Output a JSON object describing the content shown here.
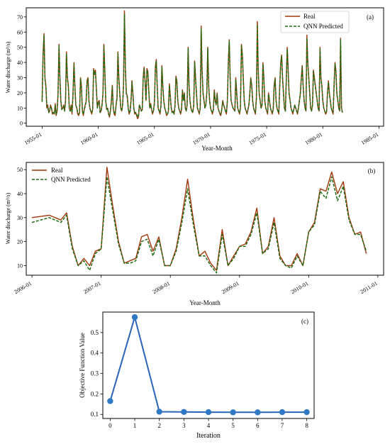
{
  "colors": {
    "real": "#a0360a",
    "predicted": "#1f6b12",
    "iteration": "#2a63b9",
    "iteration_marker": "#2f79c5"
  },
  "chart_data": [
    {
      "id": "a",
      "type": "line",
      "panel_label": "(a)",
      "xlabel": "Year-Month",
      "ylabel": "Water discharge (m³/s)",
      "x_scale": "time",
      "xlim": [
        "1953-08",
        "1985-06"
      ],
      "ylim": [
        -2,
        76
      ],
      "yticks": [
        0,
        10,
        20,
        30,
        40,
        50,
        60,
        70
      ],
      "xticks": [
        "1955-01",
        "1960-01",
        "1965-01",
        "1970-01",
        "1975-01",
        "1980-01",
        "1985-01"
      ],
      "legend_position": "top-right",
      "series": [
        {
          "name": "Real",
          "style": "solid",
          "x_start": "1955-01",
          "x_end": "1984-06",
          "values": [
            15,
            45,
            59,
            30,
            25,
            10,
            12,
            7,
            8,
            12,
            10,
            6,
            7,
            6,
            13,
            5,
            8,
            20,
            52,
            30,
            15,
            9,
            10,
            12,
            8,
            15,
            47,
            30,
            25,
            10,
            8,
            12,
            6,
            20,
            40,
            25,
            12,
            10,
            6,
            5,
            7,
            30,
            25,
            8,
            5,
            9,
            12,
            14,
            28,
            30,
            15,
            10,
            8,
            6,
            9,
            36,
            33,
            35,
            22,
            10,
            14,
            15,
            7,
            8,
            12,
            20,
            52,
            35,
            15,
            9,
            10,
            6,
            4,
            8,
            15,
            25,
            10,
            6,
            5,
            12,
            17,
            47,
            30,
            20,
            10,
            8,
            12,
            25,
            74,
            35,
            20,
            18,
            10,
            6,
            8,
            15,
            28,
            20,
            10,
            6,
            7,
            5,
            3,
            4,
            12,
            10,
            8,
            9,
            30,
            37,
            28,
            15,
            36,
            34,
            22,
            10,
            13,
            9,
            6,
            8,
            14,
            37,
            42,
            25,
            10,
            8,
            6,
            12,
            38,
            25,
            15,
            10,
            8,
            5,
            6,
            8,
            26,
            18,
            10,
            7,
            8,
            6,
            12,
            31,
            28,
            15,
            10,
            8,
            6,
            9,
            22,
            15,
            20,
            10,
            8,
            12,
            50,
            25,
            15,
            10,
            8,
            7,
            12,
            41,
            30,
            20,
            10,
            8,
            6,
            10,
            64,
            35,
            20,
            15,
            10,
            12,
            20,
            50,
            25,
            15,
            10,
            8,
            6,
            9,
            22,
            15,
            12,
            20,
            10,
            8,
            6,
            5,
            9,
            15,
            12,
            10,
            8,
            6,
            15,
            40,
            55,
            30,
            15,
            12,
            10,
            9,
            8,
            30,
            20,
            10,
            8,
            6,
            10,
            52,
            45,
            30,
            15,
            10,
            8,
            6,
            9,
            12,
            20,
            30,
            25,
            15,
            10,
            8,
            6,
            17,
            67,
            35,
            20,
            15,
            10,
            12,
            40,
            30,
            15,
            10,
            8,
            6,
            20,
            15,
            10,
            8,
            6,
            9,
            25,
            30,
            15,
            10,
            8,
            6,
            25,
            40,
            45,
            30,
            20,
            10,
            8,
            30,
            50,
            35,
            20,
            15,
            10,
            8,
            6,
            9,
            12,
            10,
            8,
            6,
            10,
            15,
            20,
            30,
            38,
            25,
            15,
            10,
            8,
            58,
            40,
            30,
            20,
            10,
            8,
            12,
            35,
            30,
            25,
            20,
            15,
            10,
            8,
            50,
            30,
            25,
            15,
            10,
            8,
            6,
            7,
            20,
            28,
            20,
            15,
            10,
            8,
            6,
            25,
            40,
            35,
            20,
            15,
            10,
            8,
            56,
            10,
            7
          ]
        },
        {
          "name": "QNN Predicted",
          "style": "dashed",
          "x_start": "1955-01",
          "x_end": "1984-06",
          "values": [
            14,
            44,
            58,
            29,
            24,
            11,
            11,
            7,
            9,
            11,
            10,
            7,
            7,
            6,
            12,
            6,
            8,
            19,
            51,
            29,
            14,
            9,
            10,
            11,
            8,
            14,
            46,
            29,
            24,
            10,
            8,
            11,
            7,
            19,
            39,
            24,
            12,
            10,
            7,
            6,
            7,
            29,
            24,
            8,
            6,
            9,
            11,
            14,
            27,
            29,
            15,
            10,
            8,
            7,
            9,
            35,
            32,
            34,
            21,
            10,
            13,
            14,
            7,
            8,
            12,
            19,
            51,
            34,
            15,
            9,
            10,
            6,
            5,
            8,
            14,
            24,
            10,
            7,
            6,
            12,
            16,
            46,
            29,
            19,
            10,
            8,
            12,
            24,
            72,
            34,
            19,
            17,
            10,
            7,
            8,
            15,
            27,
            19,
            10,
            7,
            7,
            6,
            4,
            5,
            12,
            10,
            8,
            9,
            29,
            36,
            27,
            15,
            35,
            33,
            21,
            10,
            12,
            9,
            7,
            8,
            13,
            36,
            41,
            24,
            10,
            8,
            7,
            11,
            37,
            24,
            15,
            10,
            8,
            6,
            6,
            8,
            25,
            17,
            10,
            7,
            8,
            6,
            11,
            30,
            27,
            15,
            10,
            8,
            7,
            9,
            21,
            15,
            19,
            10,
            8,
            12,
            49,
            24,
            15,
            10,
            8,
            7,
            12,
            40,
            29,
            19,
            10,
            8,
            7,
            10,
            62,
            34,
            19,
            15,
            10,
            12,
            19,
            49,
            24,
            15,
            10,
            8,
            7,
            9,
            21,
            15,
            12,
            19,
            10,
            8,
            7,
            6,
            9,
            14,
            12,
            10,
            8,
            7,
            15,
            39,
            54,
            29,
            15,
            12,
            10,
            9,
            8,
            29,
            19,
            10,
            8,
            7,
            10,
            51,
            44,
            29,
            15,
            10,
            8,
            7,
            9,
            12,
            19,
            29,
            24,
            15,
            10,
            8,
            7,
            16,
            65,
            34,
            19,
            15,
            10,
            12,
            39,
            29,
            15,
            10,
            8,
            7,
            19,
            15,
            10,
            8,
            7,
            9,
            24,
            29,
            15,
            10,
            8,
            7,
            24,
            39,
            44,
            29,
            19,
            10,
            8,
            29,
            49,
            34,
            19,
            15,
            10,
            8,
            7,
            9,
            12,
            10,
            8,
            7,
            10,
            15,
            19,
            29,
            37,
            24,
            15,
            10,
            8,
            56,
            39,
            29,
            19,
            10,
            8,
            12,
            34,
            29,
            24,
            19,
            15,
            10,
            8,
            49,
            29,
            24,
            15,
            10,
            8,
            7,
            7,
            19,
            27,
            19,
            15,
            10,
            8,
            7,
            24,
            39,
            34,
            19,
            15,
            10,
            8,
            55,
            10,
            7
          ]
        }
      ]
    },
    {
      "id": "b",
      "type": "line",
      "panel_label": "(b)",
      "xlabel": "Year-Month",
      "ylabel": "Water discharge (m³/s)",
      "x_scale": "time",
      "xlim": [
        "2005-12",
        "2011-02"
      ],
      "ylim": [
        6,
        53
      ],
      "yticks": [
        10,
        20,
        30,
        40,
        50
      ],
      "xticks": [
        "2006-01",
        "2007-01",
        "2008-01",
        "2009-01",
        "2010-01",
        "2011-01"
      ],
      "legend_position": "top-left",
      "series": [
        {
          "name": "Real",
          "style": "solid",
          "x": [
            "2006-01",
            "2006-04",
            "2006-06",
            "2006-07",
            "2006-08",
            "2006-09",
            "2006-10",
            "2006-11",
            "2006-12",
            "2007-01",
            "2007-02",
            "2007-03",
            "2007-04",
            "2007-05",
            "2007-06",
            "2007-07",
            "2007-08",
            "2007-09",
            "2007-10",
            "2007-11",
            "2007-12",
            "2008-01",
            "2008-02",
            "2008-03",
            "2008-04",
            "2008-05",
            "2008-06",
            "2008-07",
            "2008-08",
            "2008-09",
            "2008-10",
            "2008-11",
            "2008-12",
            "2009-01",
            "2009-02",
            "2009-03",
            "2009-04",
            "2009-05",
            "2009-06",
            "2009-07",
            "2009-08",
            "2009-09",
            "2009-10",
            "2009-11",
            "2009-12",
            "2010-01",
            "2010-02",
            "2010-03",
            "2010-04",
            "2010-05",
            "2010-06",
            "2010-07",
            "2010-08",
            "2010-09",
            "2010-10",
            "2010-11"
          ],
          "values": [
            30,
            31,
            29,
            32,
            18,
            10,
            13,
            10,
            16,
            17,
            51,
            35,
            20,
            11,
            12,
            13,
            22,
            23,
            16,
            22,
            10,
            10,
            17,
            30,
            46,
            29,
            14,
            16,
            11,
            8,
            25,
            10,
            14,
            18,
            19,
            24,
            34,
            15,
            18,
            30,
            14,
            10,
            10,
            15,
            10,
            24,
            28,
            42,
            41,
            49,
            40,
            45,
            30,
            23,
            24,
            15
          ]
        },
        {
          "name": "QNN Predicted",
          "style": "dashed",
          "x": [
            "2006-01",
            "2006-04",
            "2006-06",
            "2006-07",
            "2006-08",
            "2006-09",
            "2006-10",
            "2006-11",
            "2006-12",
            "2007-01",
            "2007-02",
            "2007-03",
            "2007-04",
            "2007-05",
            "2007-06",
            "2007-07",
            "2007-08",
            "2007-09",
            "2007-10",
            "2007-11",
            "2007-12",
            "2008-01",
            "2008-02",
            "2008-03",
            "2008-04",
            "2008-05",
            "2008-06",
            "2008-07",
            "2008-08",
            "2008-09",
            "2008-10",
            "2008-11",
            "2008-12",
            "2009-01",
            "2009-02",
            "2009-03",
            "2009-04",
            "2009-05",
            "2009-06",
            "2009-07",
            "2009-08",
            "2009-09",
            "2009-10",
            "2009-11",
            "2009-12",
            "2010-01",
            "2010-02",
            "2010-03",
            "2010-04",
            "2010-05",
            "2010-06",
            "2010-07",
            "2010-08",
            "2010-09",
            "2010-10",
            "2010-11"
          ],
          "values": [
            28,
            30,
            28,
            31,
            17,
            10,
            12,
            8,
            15,
            17,
            47,
            33,
            19,
            11,
            11,
            12,
            20,
            21,
            14,
            21,
            10,
            10,
            16,
            28,
            42,
            27,
            14,
            14,
            10,
            7,
            23,
            10,
            13,
            18,
            18,
            23,
            32,
            15,
            17,
            28,
            13,
            10,
            9,
            14,
            10,
            24,
            27,
            41,
            38,
            47,
            37,
            43,
            29,
            23,
            23,
            16
          ]
        }
      ]
    },
    {
      "id": "c",
      "type": "line",
      "panel_label": "(c)",
      "xlabel": "Iteration",
      "ylabel": "Objective Function Value",
      "xlim": [
        -0.3,
        8.3
      ],
      "ylim": [
        0.08,
        0.6
      ],
      "xticks": [
        0,
        1,
        2,
        3,
        4,
        5,
        6,
        7,
        8
      ],
      "yticks": [
        0.1,
        0.2,
        0.3,
        0.4,
        0.5
      ],
      "ytick_labels": [
        "0.1",
        "0.2",
        "0.3",
        "0.4",
        "0.5"
      ],
      "x": [
        0,
        1,
        2,
        3,
        4,
        5,
        6,
        7,
        8
      ],
      "values": [
        0.165,
        0.575,
        0.113,
        0.112,
        0.111,
        0.11,
        0.11,
        0.111,
        0.111
      ]
    }
  ]
}
